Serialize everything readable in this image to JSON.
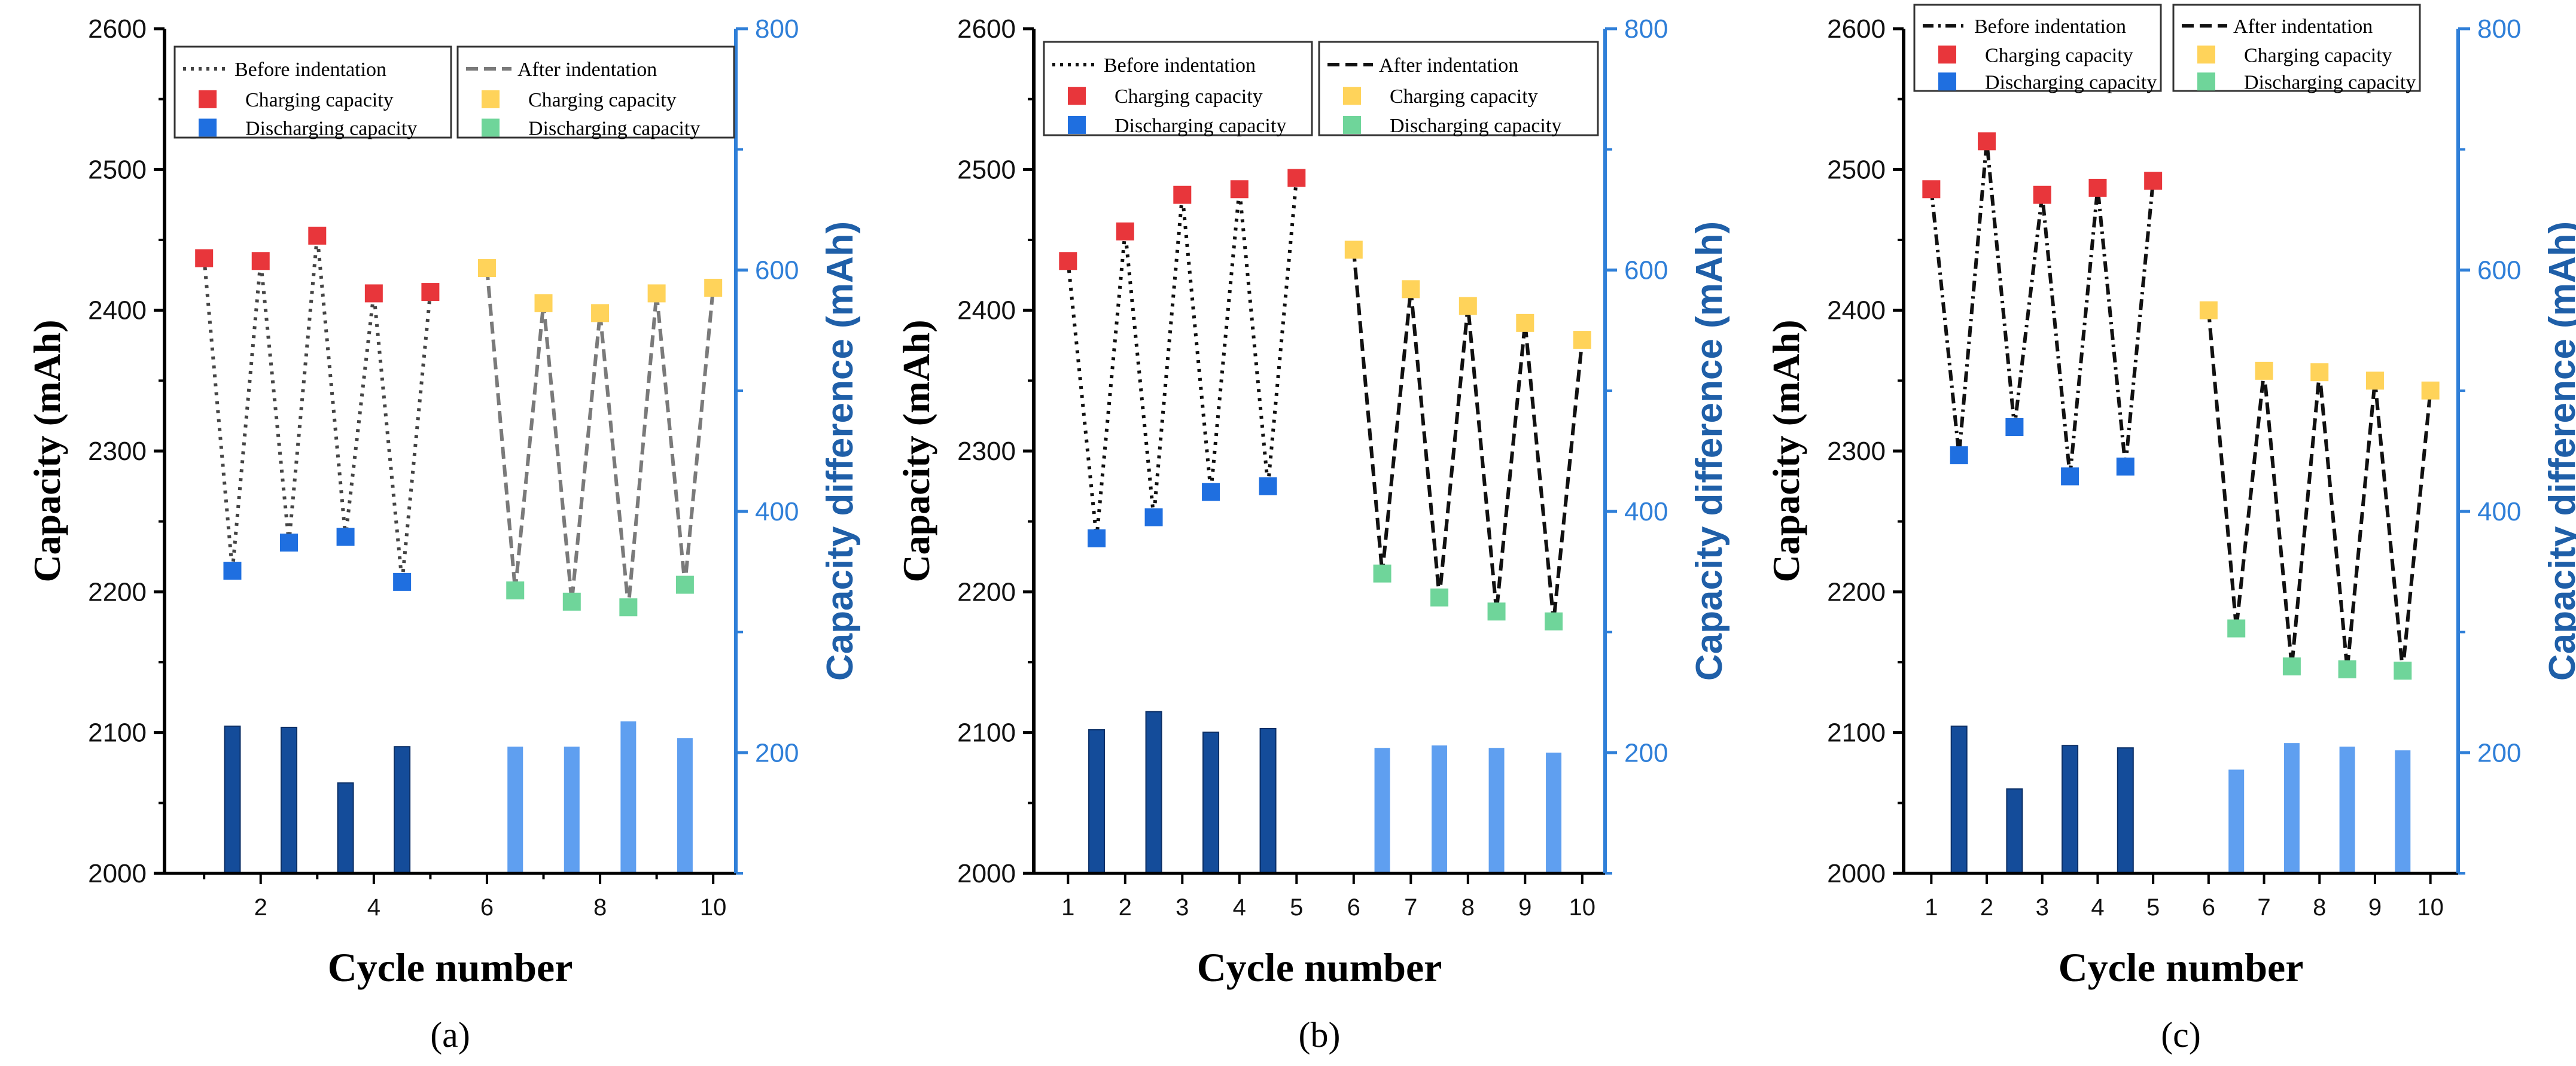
{
  "colors": {
    "charge_before": "#e8363b",
    "charge_after": "#ffd35a",
    "discharge_before": "#1f6fe0",
    "discharge_after": "#6fd59a",
    "bar_before": "#144c9a",
    "bar_after": "#5f9ff0",
    "right_axis": "#2f7fd8"
  },
  "chart_data": [
    {
      "type": "line+bar",
      "panel_label": "(a)",
      "xlabel": "Cycle number",
      "ylabel": "Capacity (mAh)",
      "ylabel_right": "Capacity difference (mAh)",
      "xlim": [
        0.3,
        10.4
      ],
      "ylim": [
        2000,
        2600
      ],
      "ylim_right": [
        100,
        800
      ],
      "x_ticks": [
        "2",
        "4",
        "6",
        "8",
        "10"
      ],
      "x_tick_values": [
        2,
        4,
        6,
        8,
        10
      ],
      "y_ticks": [
        "2000",
        "2100",
        "2200",
        "2300",
        "2400",
        "2500",
        "2600"
      ],
      "y_tick_values": [
        2000,
        2100,
        2200,
        2300,
        2400,
        2500,
        2600
      ],
      "y_right_ticks": [
        "200",
        "400",
        "600",
        "800"
      ],
      "y_right_tick_values": [
        200,
        400,
        600,
        800
      ],
      "legend": {
        "before_title": "Before indentation",
        "after_title": "After indentation",
        "charge_label": "Charging capacity",
        "discharge_label": "Discharging capacity"
      },
      "series": {
        "charge_before": {
          "x": [
            1,
            2,
            3,
            4,
            5
          ],
          "values": [
            2437,
            2435,
            2453,
            2412,
            2413
          ]
        },
        "discharge_before": {
          "x": [
            1.5,
            2.5,
            3.5,
            4.5
          ],
          "values": [
            2215,
            2235,
            2239,
            2207
          ]
        },
        "charge_after": {
          "x": [
            6,
            7,
            8,
            9,
            10
          ],
          "values": [
            2430,
            2405,
            2398,
            2412,
            2416
          ]
        },
        "discharge_after": {
          "x": [
            6.5,
            7.5,
            8.5,
            9.5
          ],
          "values": [
            2201,
            2193,
            2189,
            2205
          ]
        },
        "difference_before": {
          "x": [
            1.5,
            2.5,
            3.5,
            4.5
          ],
          "values": [
            222,
            221,
            175,
            205
          ]
        },
        "difference_after": {
          "x": [
            6.5,
            7.5,
            8.5,
            9.5
          ],
          "values": [
            205,
            205,
            226,
            212
          ]
        }
      }
    },
    {
      "type": "line+bar",
      "panel_label": "(b)",
      "xlabel": "Cycle number",
      "ylabel": "Capacity (mAh)",
      "ylabel_right": "Capacity difference (mAh)",
      "xlim": [
        0.4,
        10.4
      ],
      "ylim": [
        2000,
        2600
      ],
      "ylim_right": [
        100,
        800
      ],
      "x_ticks": [
        "1",
        "2",
        "3",
        "4",
        "5",
        "6",
        "7",
        "8",
        "9",
        "10"
      ],
      "x_tick_values": [
        1,
        2,
        3,
        4,
        5,
        6,
        7,
        8,
        9,
        10
      ],
      "y_ticks": [
        "2000",
        "2100",
        "2200",
        "2300",
        "2400",
        "2500",
        "2600"
      ],
      "y_tick_values": [
        2000,
        2100,
        2200,
        2300,
        2400,
        2500,
        2600
      ],
      "y_right_ticks": [
        "200",
        "400",
        "600",
        "800"
      ],
      "y_right_tick_values": [
        200,
        400,
        600,
        800
      ],
      "legend": {
        "before_title": "Before indentation",
        "after_title": "After indentation",
        "charge_label": "Charging capacity",
        "discharge_label": "Discharging capacity"
      },
      "series": {
        "charge_before": {
          "x": [
            1,
            2,
            3,
            4,
            5
          ],
          "values": [
            2435,
            2456,
            2482,
            2486,
            2494
          ]
        },
        "discharge_before": {
          "x": [
            1.5,
            2.5,
            3.5,
            4.5
          ],
          "values": [
            2238,
            2253,
            2271,
            2275
          ]
        },
        "charge_after": {
          "x": [
            6,
            7,
            8,
            9,
            10
          ],
          "values": [
            2443,
            2415,
            2403,
            2391,
            2379
          ]
        },
        "discharge_after": {
          "x": [
            6.5,
            7.5,
            8.5,
            9.5
          ],
          "values": [
            2213,
            2196,
            2186,
            2179
          ]
        },
        "difference_before": {
          "x": [
            1.5,
            2.5,
            3.5,
            4.5
          ],
          "values": [
            219,
            234,
            217,
            220
          ]
        },
        "difference_after": {
          "x": [
            6.5,
            7.5,
            8.5,
            9.5
          ],
          "values": [
            204,
            206,
            204,
            200
          ]
        }
      }
    },
    {
      "type": "line+bar",
      "panel_label": "(c)",
      "xlabel": "Cycle number",
      "ylabel": "Capacity (mAh)",
      "ylabel_right": "Capacity difference (mAh)",
      "xlim": [
        0.5,
        10.5
      ],
      "ylim": [
        2000,
        2600
      ],
      "ylim_right": [
        100,
        800
      ],
      "x_ticks": [
        "1",
        "2",
        "3",
        "4",
        "5",
        "6",
        "7",
        "8",
        "9",
        "10"
      ],
      "x_tick_values": [
        1,
        2,
        3,
        4,
        5,
        6,
        7,
        8,
        9,
        10
      ],
      "y_ticks": [
        "2000",
        "2100",
        "2200",
        "2300",
        "2400",
        "2500",
        "2600"
      ],
      "y_tick_values": [
        2000,
        2100,
        2200,
        2300,
        2400,
        2500,
        2600
      ],
      "y_right_ticks": [
        "200",
        "400",
        "600",
        "800"
      ],
      "y_right_tick_values": [
        200,
        400,
        600,
        800
      ],
      "legend": {
        "before_title": "Before indentation",
        "after_title": "After indentation",
        "charge_label": "Charging capacity",
        "discharge_label": "Discharging capacity"
      },
      "series": {
        "charge_before": {
          "x": [
            1,
            2,
            3,
            4,
            5
          ],
          "values": [
            2486,
            2520,
            2482,
            2487,
            2492
          ]
        },
        "discharge_before": {
          "x": [
            1.5,
            2.5,
            3.5,
            4.5
          ],
          "values": [
            2297,
            2317,
            2282,
            2289
          ]
        },
        "charge_after": {
          "x": [
            6,
            7,
            8,
            9,
            10
          ],
          "values": [
            2400,
            2357,
            2356,
            2350,
            2343
          ]
        },
        "discharge_after": {
          "x": [
            6.5,
            7.5,
            8.5,
            9.5
          ],
          "values": [
            2174,
            2147,
            2145,
            2144
          ]
        },
        "difference_before": {
          "x": [
            1.5,
            2.5,
            3.5,
            4.5
          ],
          "values": [
            222,
            170,
            206,
            204
          ]
        },
        "difference_after": {
          "x": [
            6.5,
            7.5,
            8.5,
            9.5
          ],
          "values": [
            186,
            208,
            205,
            202
          ]
        }
      }
    }
  ]
}
